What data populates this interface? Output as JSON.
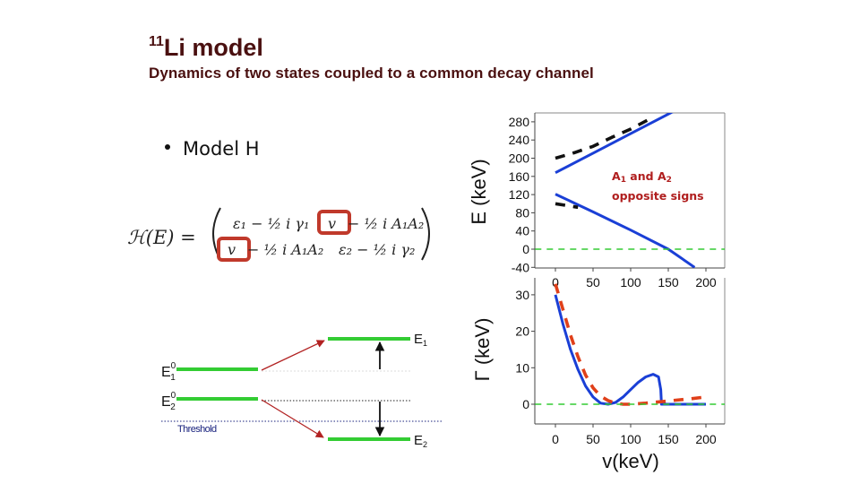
{
  "slide": {
    "title_sup": "11",
    "title_main": "Li model",
    "subtitle": "Dynamics of two states coupled to a common decay channel",
    "bullet": "Model H",
    "formula": {
      "lhs": "ℋ(E) =",
      "m11": "ε₁ − ½ i γ₁",
      "m12_v": "v",
      "m12_rest": "− ½ i A₁A₂",
      "m21_v": "v",
      "m21_rest": "− ½ i A₁A₂",
      "m22": "ε₂ − ½ i γ₂",
      "highlight_color": "#c0392b"
    },
    "level_diagram": {
      "labels": {
        "e1_0": "E",
        "e1_0_sup": "0",
        "e1_0_sub": "1",
        "e2_0": "E",
        "e2_0_sup": "0",
        "e2_0_sub": "2",
        "e1": "E",
        "e1_sub": "1",
        "e2": "E",
        "e2_sub": "2",
        "threshold": "Threshold"
      },
      "level_color": "#33cc33",
      "arrow_color": "#b22222",
      "threshold_color": "#1a237e"
    },
    "annotation": {
      "line1_a": "A",
      "line1_sub1": "1",
      "line1_mid": " and A",
      "line1_sub2": "2",
      "line2": "opposite signs"
    }
  },
  "chart_data": [
    {
      "type": "line",
      "title": "",
      "xlabel": "",
      "ylabel": "E (keV)",
      "xlim": [
        -27,
        225
      ],
      "ylim": [
        -40,
        295
      ],
      "xticks": [
        0,
        50,
        100,
        150,
        200
      ],
      "yticks": [
        280,
        240,
        200,
        160,
        120,
        80,
        40,
        0,
        -40
      ],
      "series": [
        {
          "name": "E1 (upper, solid blue)",
          "color": "#1a3fd6",
          "style": "solid",
          "x": [
            0,
            50,
            100,
            150,
            200
          ],
          "y": [
            168,
            211,
            254,
            297,
            340
          ]
        },
        {
          "name": "E2 (lower, solid blue)",
          "color": "#1a3fd6",
          "style": "solid",
          "x": [
            0,
            50,
            100,
            150,
            185
          ],
          "y": [
            121,
            82,
            42,
            0,
            -40
          ]
        },
        {
          "name": "upper (dashed black)",
          "color": "#111111",
          "style": "dashed",
          "x": [
            0,
            25,
            50,
            75,
            100,
            125
          ],
          "y": [
            200,
            212,
            226,
            246,
            264,
            286
          ]
        },
        {
          "name": "lower (dashed black)",
          "color": "#111111",
          "style": "dashed",
          "x": [
            0,
            15,
            30
          ],
          "y": [
            100,
            96,
            92
          ]
        },
        {
          "name": "threshold",
          "color": "#33cc33",
          "style": "dashed",
          "x": [
            -27,
            225
          ],
          "y": [
            0,
            0
          ]
        }
      ]
    },
    {
      "type": "line",
      "title": "",
      "xlabel": "v(keV)",
      "ylabel": "Γ (keV)",
      "xlim": [
        -27,
        225
      ],
      "ylim": [
        -5,
        34
      ],
      "xticks": [
        0,
        50,
        100,
        150,
        200
      ],
      "yticks": [
        30,
        20,
        10,
        0
      ],
      "series": [
        {
          "name": "Γ (solid blue)",
          "color": "#1a3fd6",
          "style": "solid",
          "x": [
            0,
            10,
            20,
            30,
            40,
            50,
            60,
            70,
            80,
            90,
            100,
            110,
            120,
            130,
            137,
            140,
            141,
            160,
            200
          ],
          "y": [
            30,
            22,
            15,
            9.5,
            5,
            2,
            0.3,
            0,
            0.5,
            2,
            4,
            6,
            7.5,
            8.2,
            7.5,
            4,
            0,
            0,
            0
          ]
        },
        {
          "name": "Γ (dashed red)",
          "color": "#e0401a",
          "style": "dashed",
          "x": [
            0,
            10,
            20,
            30,
            40,
            50,
            60,
            70,
            80,
            90,
            100,
            120,
            140,
            160,
            180,
            200
          ],
          "y": [
            33,
            26,
            19,
            13,
            8,
            4.5,
            2.2,
            1,
            0.3,
            0,
            0,
            0.3,
            0.7,
            1.1,
            1.5,
            2
          ]
        },
        {
          "name": "threshold",
          "color": "#33cc33",
          "style": "dashed",
          "x": [
            -27,
            225
          ],
          "y": [
            0,
            0
          ]
        }
      ]
    }
  ]
}
